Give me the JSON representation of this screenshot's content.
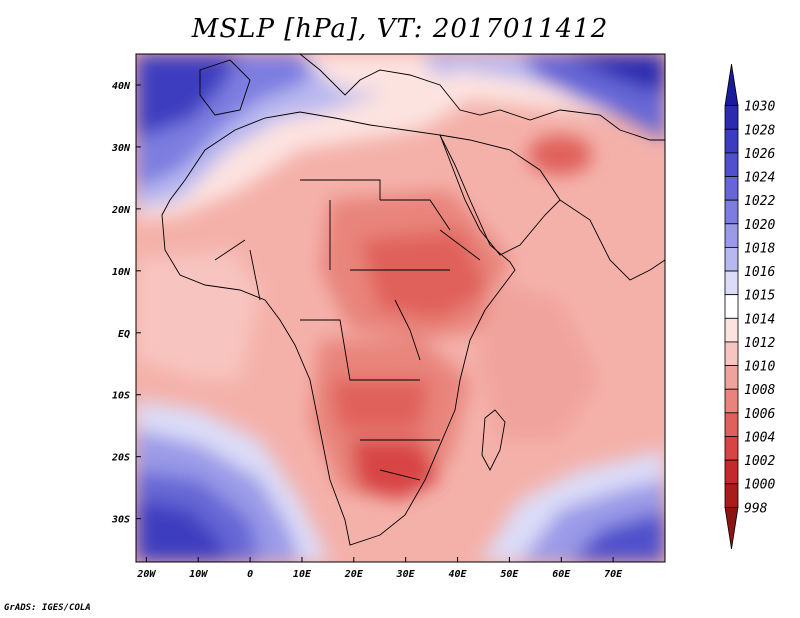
{
  "title": "MSLP [hPa], VT: 2017011412",
  "credit": "GrADS: IGES/COLA",
  "map": {
    "lon_range": [
      -22,
      80
    ],
    "lat_range": [
      -37,
      45
    ],
    "x_ticks": [
      "20W",
      "10W",
      "0",
      "10E",
      "20E",
      "30E",
      "40E",
      "50E",
      "60E",
      "70E"
    ],
    "x_tick_values": [
      -20,
      -10,
      0,
      10,
      20,
      30,
      40,
      50,
      60,
      70
    ],
    "y_ticks": [
      "40N",
      "30N",
      "20N",
      "10N",
      "EQ",
      "10S",
      "20S",
      "30S"
    ],
    "y_tick_values": [
      40,
      30,
      20,
      10,
      0,
      -10,
      -20,
      -30
    ]
  },
  "colorbar": {
    "levels": [
      "1030",
      "1028",
      "1026",
      "1024",
      "1022",
      "1020",
      "1018",
      "1016",
      "1015",
      "1014",
      "1012",
      "1010",
      "1008",
      "1006",
      "1004",
      "1002",
      "1000",
      "998"
    ],
    "colors": [
      "#1a1a9e",
      "#2b2bb0",
      "#3c3cc0",
      "#5050cc",
      "#6666d6",
      "#7d7de0",
      "#9a9ae8",
      "#b8b8f0",
      "#dcdcf8",
      "#ffffff",
      "#fde3e0",
      "#f8c4bf",
      "#f0a39c",
      "#e8847c",
      "#e0615c",
      "#d84444",
      "#c42a2a",
      "#a81c1c",
      "#8c1414"
    ]
  }
}
